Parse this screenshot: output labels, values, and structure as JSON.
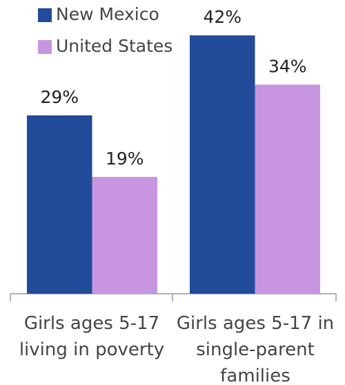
{
  "chart_data": {
    "type": "bar",
    "categories": [
      "Girls ages 5-17 living in poverty",
      "Girls ages 5-17 in single-parent families"
    ],
    "series": [
      {
        "name": "New Mexico",
        "color": "#224b99",
        "values": [
          29,
          42
        ],
        "value_labels": [
          "29%",
          "42%"
        ]
      },
      {
        "name": "United States",
        "color": "#c896e1",
        "values": [
          19,
          34
        ],
        "value_labels": [
          "19%",
          "34%"
        ]
      }
    ],
    "legend": "top-left"
  }
}
